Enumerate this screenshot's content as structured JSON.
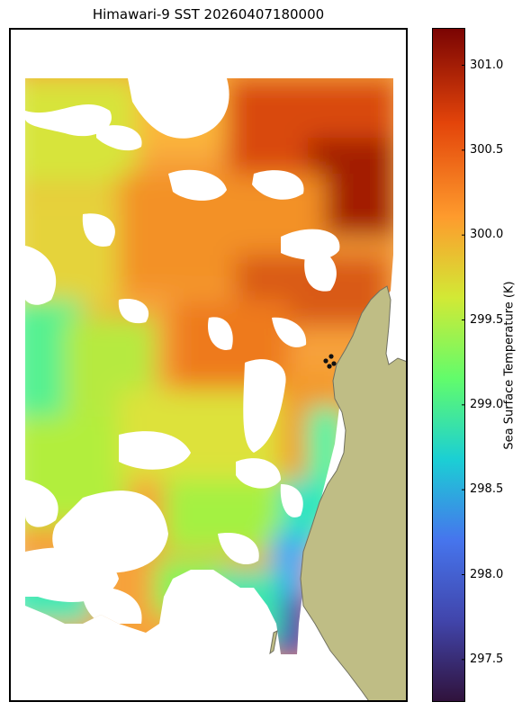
{
  "title": "Himawari-9 SST 20260407180000",
  "colorbar": {
    "label": "Sea Surface Temperature (K)",
    "min": 297.25,
    "max": 301.22,
    "ticks": [
      "297.5",
      "298.0",
      "298.5",
      "299.0",
      "299.5",
      "300.0",
      "300.5",
      "301.0"
    ],
    "colors": [
      "#30123b",
      "#4145ab",
      "#4675ed",
      "#1bcfd4",
      "#62fc6b",
      "#d2e935",
      "#fe9b2d",
      "#e3440a",
      "#7a0403"
    ]
  },
  "map": {
    "land_color": "#bfbd85",
    "land_edge": "#707060",
    "stations": [
      {
        "lon_rel": 0.79,
        "lat_rel": 0.49
      },
      {
        "lon_rel": 0.8,
        "lat_rel": 0.48
      },
      {
        "lon_rel": 0.81,
        "lat_rel": 0.47
      }
    ]
  }
}
